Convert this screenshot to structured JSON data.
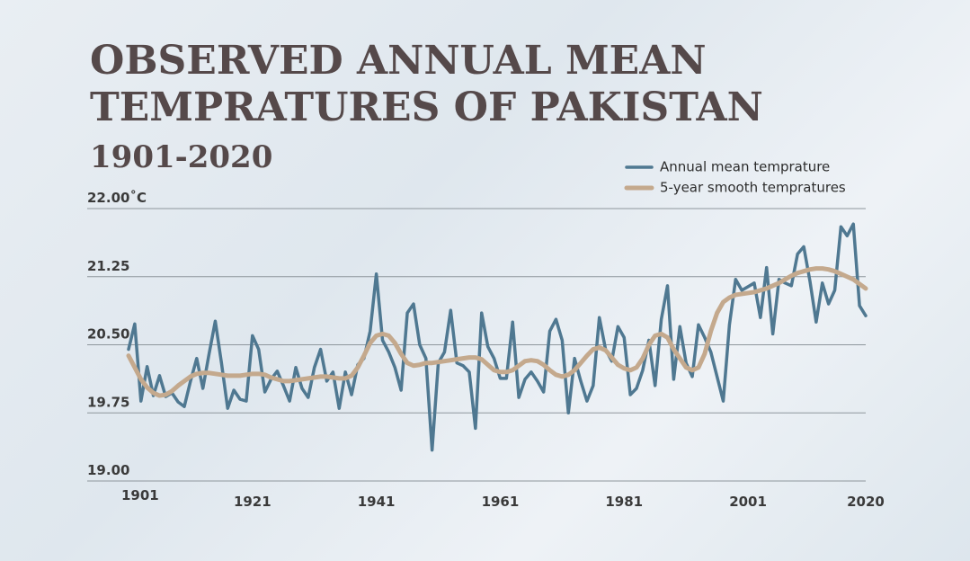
{
  "chart_data": {
    "type": "line",
    "title": [
      "OBSERVED ANNUAL MEAN",
      "TEMPRATURES OF PAKISTAN"
    ],
    "subtitle": "1901-2020",
    "x": [
      1901,
      1902,
      1903,
      1904,
      1905,
      1906,
      1907,
      1908,
      1909,
      1910,
      1911,
      1912,
      1913,
      1914,
      1915,
      1916,
      1917,
      1918,
      1919,
      1920,
      1921,
      1922,
      1923,
      1924,
      1925,
      1926,
      1927,
      1928,
      1929,
      1930,
      1931,
      1932,
      1933,
      1934,
      1935,
      1936,
      1937,
      1938,
      1939,
      1940,
      1941,
      1942,
      1943,
      1944,
      1945,
      1946,
      1947,
      1948,
      1949,
      1950,
      1951,
      1952,
      1953,
      1954,
      1955,
      1956,
      1957,
      1958,
      1959,
      1960,
      1961,
      1962,
      1963,
      1964,
      1965,
      1966,
      1967,
      1968,
      1969,
      1970,
      1971,
      1972,
      1973,
      1974,
      1975,
      1976,
      1977,
      1978,
      1979,
      1980,
      1981,
      1982,
      1983,
      1984,
      1985,
      1986,
      1987,
      1988,
      1989,
      1990,
      1991,
      1992,
      1993,
      1994,
      1995,
      1996,
      1997,
      1998,
      1999,
      2000,
      2001,
      2002,
      2003,
      2004,
      2005,
      2006,
      2007,
      2008,
      2009,
      2010,
      2011,
      2012,
      2013,
      2014,
      2015,
      2016,
      2017,
      2018,
      2019,
      2020
    ],
    "series": [
      {
        "name": "Annual mean temprature",
        "color": "#4f7891",
        "width": 3.5,
        "values": [
          20.45,
          20.73,
          19.88,
          20.26,
          19.94,
          20.16,
          19.93,
          19.97,
          19.87,
          19.82,
          20.1,
          20.35,
          20.02,
          20.4,
          20.76,
          20.3,
          19.8,
          20.0,
          19.9,
          19.88,
          20.6,
          20.45,
          19.98,
          20.12,
          20.21,
          20.05,
          19.88,
          20.25,
          20.02,
          19.92,
          20.25,
          20.45,
          20.1,
          20.2,
          19.8,
          20.2,
          19.95,
          20.28,
          20.35,
          20.65,
          21.28,
          20.55,
          20.42,
          20.25,
          20.0,
          20.85,
          20.95,
          20.5,
          20.35,
          19.34,
          20.3,
          20.42,
          20.88,
          20.3,
          20.27,
          20.2,
          19.58,
          20.85,
          20.48,
          20.35,
          20.13,
          20.13,
          20.75,
          19.92,
          20.12,
          20.2,
          20.1,
          19.98,
          20.65,
          20.78,
          20.55,
          19.75,
          20.35,
          20.1,
          19.88,
          20.05,
          20.8,
          20.45,
          20.32,
          20.7,
          20.58,
          19.95,
          20.02,
          20.22,
          20.55,
          20.05,
          20.78,
          21.15,
          20.12,
          20.7,
          20.3,
          20.15,
          20.72,
          20.58,
          20.42,
          20.15,
          19.88,
          20.72,
          21.22,
          21.1,
          21.14,
          21.18,
          20.8,
          21.35,
          20.62,
          21.22,
          21.18,
          21.15,
          21.5,
          21.58,
          21.2,
          20.75,
          21.18,
          20.95,
          21.1,
          21.8,
          21.7,
          21.83,
          20.93,
          20.82
        ]
      },
      {
        "name": "5-year smooth tempratures",
        "color": "#c4a98d",
        "width": 5,
        "values": [
          20.38,
          20.25,
          20.12,
          20.03,
          19.97,
          19.94,
          19.95,
          19.99,
          20.05,
          20.1,
          20.15,
          20.18,
          20.19,
          20.19,
          20.18,
          20.17,
          20.16,
          20.16,
          20.16,
          20.17,
          20.18,
          20.18,
          20.17,
          20.14,
          20.12,
          20.1,
          20.1,
          20.11,
          20.12,
          20.13,
          20.14,
          20.15,
          20.15,
          20.14,
          20.13,
          20.13,
          20.16,
          20.25,
          20.38,
          20.52,
          20.6,
          20.62,
          20.6,
          20.52,
          20.4,
          20.3,
          20.27,
          20.28,
          20.3,
          20.3,
          20.31,
          20.32,
          20.33,
          20.34,
          20.35,
          20.36,
          20.36,
          20.34,
          20.28,
          20.22,
          20.2,
          20.2,
          20.22,
          20.27,
          20.32,
          20.33,
          20.32,
          20.28,
          20.22,
          20.17,
          20.15,
          20.17,
          20.22,
          20.3,
          20.38,
          20.45,
          20.47,
          20.44,
          20.36,
          20.28,
          20.24,
          20.22,
          20.25,
          20.35,
          20.5,
          20.6,
          20.62,
          20.58,
          20.45,
          20.35,
          20.25,
          20.22,
          20.25,
          20.4,
          20.65,
          20.85,
          20.97,
          21.02,
          21.05,
          21.06,
          21.07,
          21.08,
          21.1,
          21.12,
          21.15,
          21.18,
          21.22,
          21.26,
          21.29,
          21.31,
          21.33,
          21.34,
          21.34,
          21.33,
          21.31,
          21.28,
          21.25,
          21.22,
          21.17,
          21.12
        ]
      }
    ],
    "xlim": [
      1901,
      2020
    ],
    "xticks": [
      1901,
      1921,
      1941,
      1961,
      1981,
      2001,
      2020
    ],
    "ylim": [
      19.0,
      22.0
    ],
    "yticks": [
      {
        "value": 19.0,
        "label": "19.00"
      },
      {
        "value": 19.75,
        "label": "19.75"
      },
      {
        "value": 20.5,
        "label": "20.50"
      },
      21.25,
      {
        "value": 22.0,
        "label": "22.00˚C"
      }
    ],
    "grid": true,
    "legend": "top-right"
  }
}
